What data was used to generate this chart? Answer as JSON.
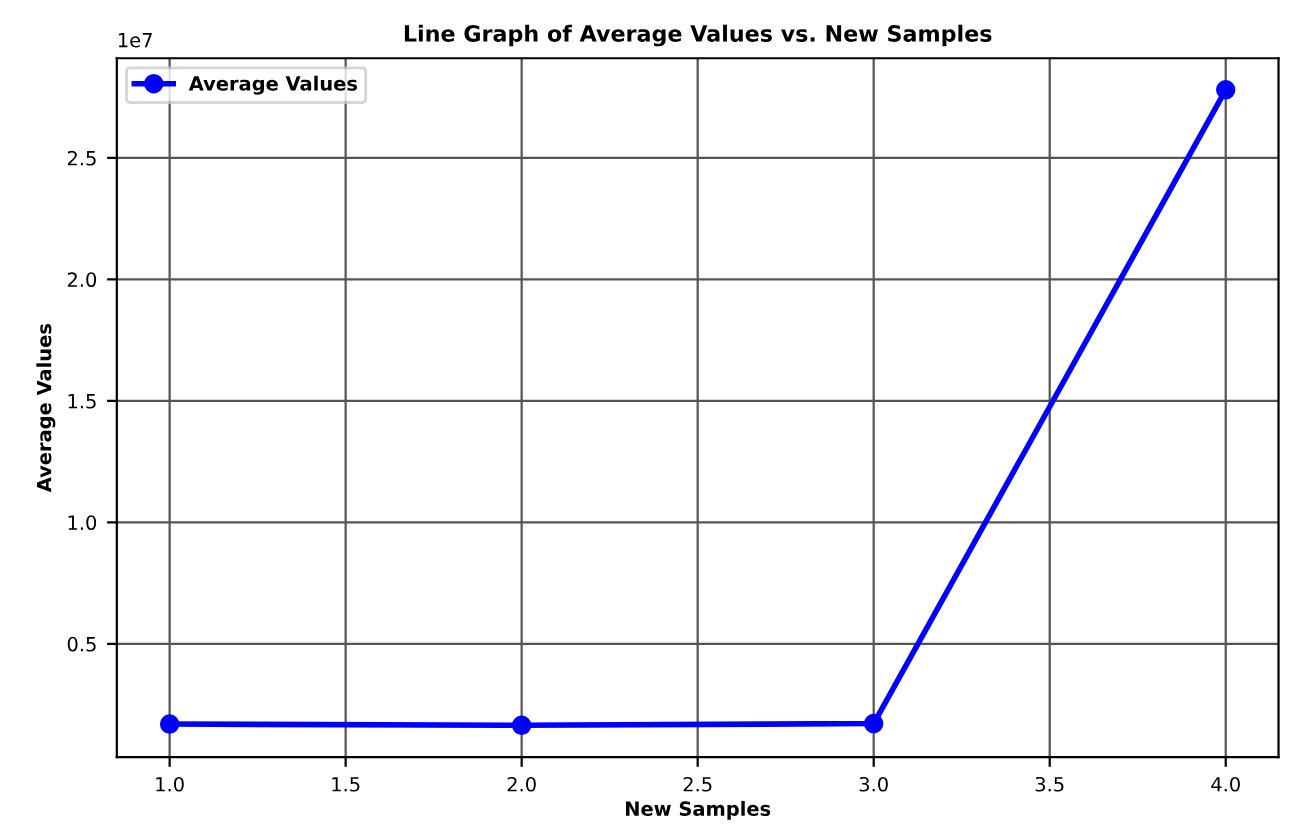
{
  "chart_data": {
    "type": "line",
    "title": "Line Graph of Average Values vs. New Samples",
    "xlabel": "New Samples",
    "ylabel": "Average Values",
    "x": [
      1.0,
      2.0,
      3.0,
      4.0
    ],
    "series": [
      {
        "name": "Average Values",
        "color": "#0000ff",
        "values": [
          0.17,
          0.165,
          0.172,
          2.78
        ]
      }
    ],
    "xlim": [
      0.85,
      4.15
    ],
    "xticks": [
      {
        "value": 1.0,
        "label": "1.0"
      },
      {
        "value": 1.5,
        "label": "1.5"
      },
      {
        "value": 2.0,
        "label": "2.0"
      },
      {
        "value": 2.5,
        "label": "2.5"
      },
      {
        "value": 3.0,
        "label": "3.0"
      },
      {
        "value": 3.5,
        "label": "3.5"
      },
      {
        "value": 4.0,
        "label": "4.0"
      }
    ],
    "ylim": [
      0.034,
      2.91
    ],
    "yticks": [
      {
        "value": 0.5,
        "label": "0.5"
      },
      {
        "value": 1.0,
        "label": "1.0"
      },
      {
        "value": 1.5,
        "label": "1.5"
      },
      {
        "value": 2.0,
        "label": "2.0"
      },
      {
        "value": 2.5,
        "label": "2.5"
      }
    ],
    "annotations": [
      "1e7"
    ],
    "grid": true,
    "legend": "top left",
    "marker": "circle",
    "line_style": "solid"
  }
}
